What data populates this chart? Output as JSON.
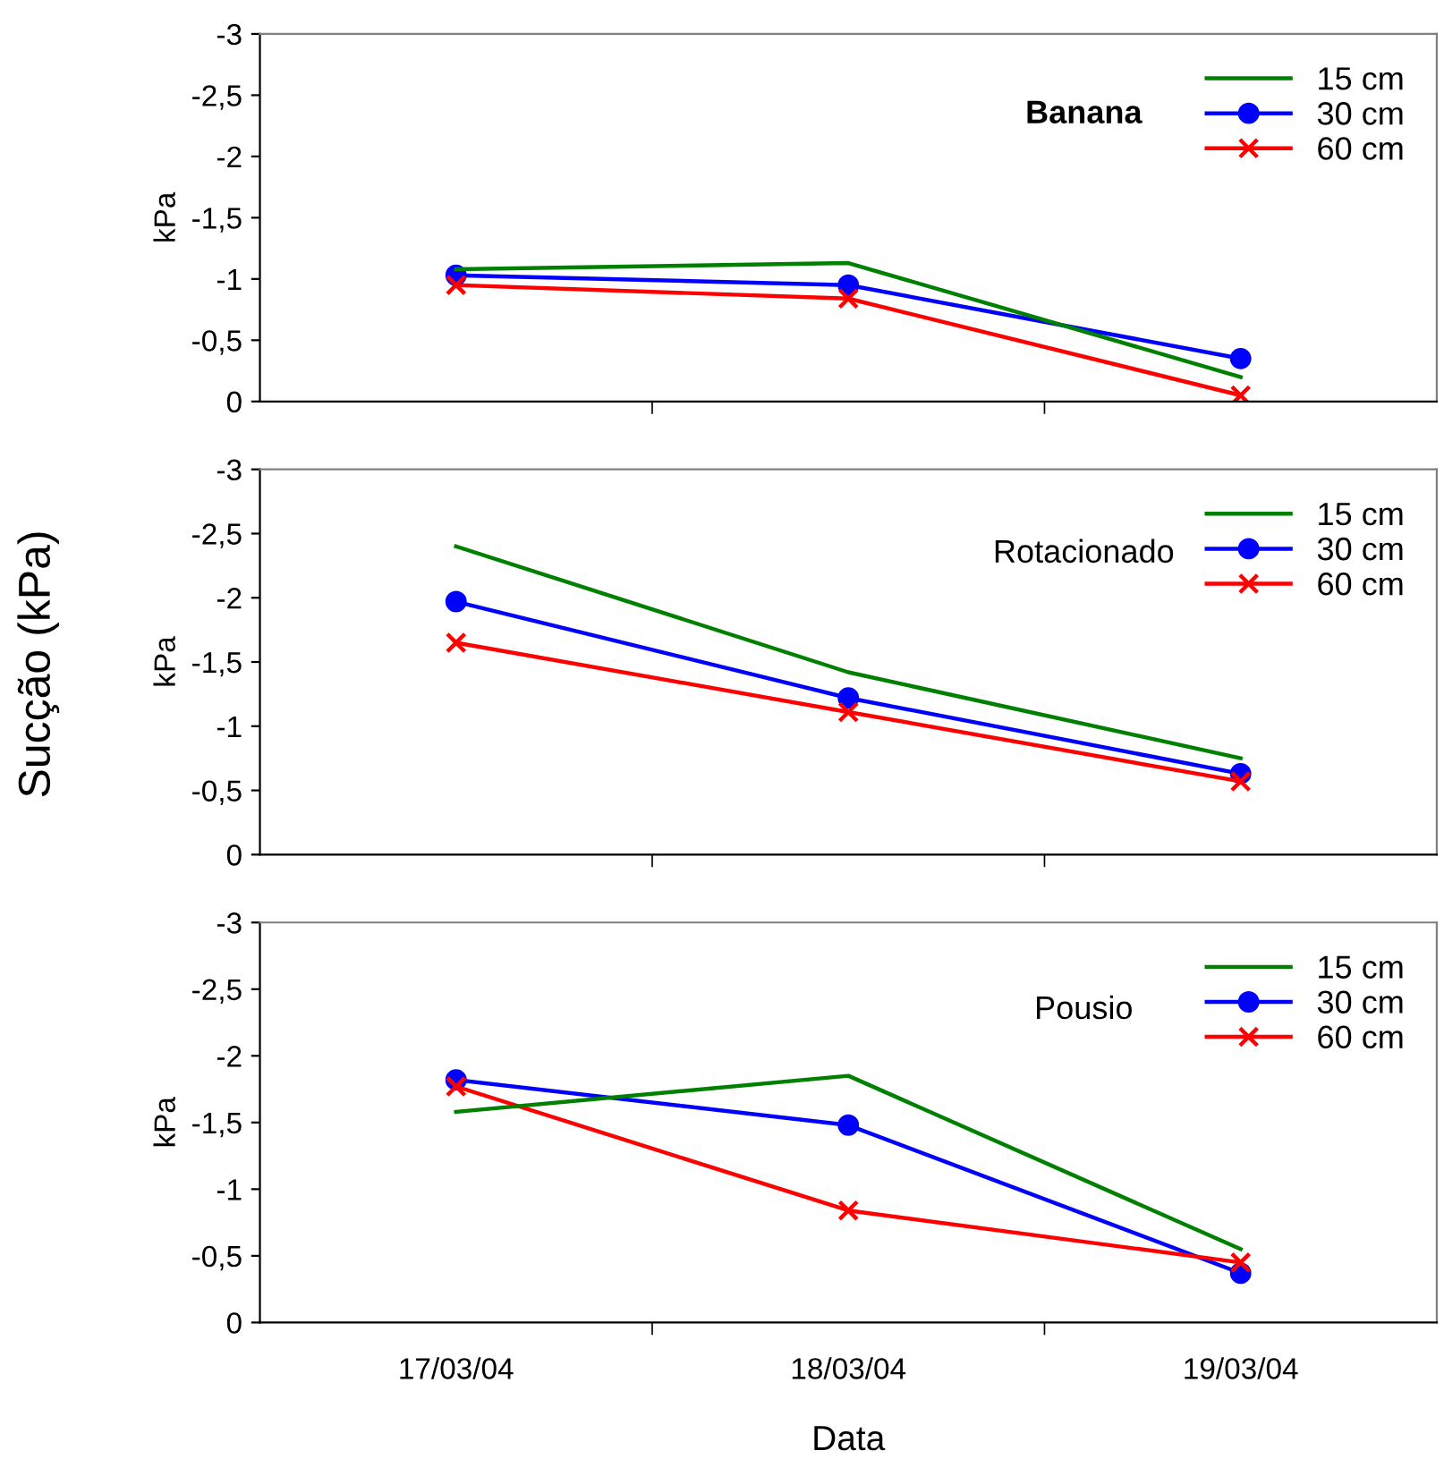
{
  "chart_data": [
    {
      "type": "line",
      "title": "Banana",
      "ylabel": "kPa",
      "categories": [
        null,
        null,
        null
      ],
      "series": [
        {
          "name": "15 cm",
          "color": "#008000",
          "marker": "none",
          "values": [
            -1.08,
            -1.13,
            -0.2
          ]
        },
        {
          "name": "30 cm",
          "color": "#0000ff",
          "marker": "circle",
          "values": [
            -1.03,
            -0.95,
            -0.35
          ]
        },
        {
          "name": "60 cm",
          "color": "#ff0000",
          "marker": "cross",
          "values": [
            -0.95,
            -0.84,
            -0.05
          ]
        }
      ],
      "ylim": [
        0,
        -3
      ],
      "yticks": [
        0,
        {
          "value": -0.5,
          "label": "-0,5"
        },
        -1,
        {
          "value": -1.5,
          "label": "-1,5"
        },
        -2,
        {
          "value": -2.5,
          "label": "-2,5"
        },
        -3
      ],
      "grid": false,
      "legend": "top right",
      "line_style": "solid",
      "tick_labels": "y"
    },
    {
      "type": "line",
      "title": "Rotacionado",
      "ylabel": "kPa",
      "categories": [
        null,
        null,
        null
      ],
      "annotations": [
        "Sucção (kPa)"
      ],
      "series": [
        {
          "name": "15 cm",
          "color": "#008000",
          "marker": "none",
          "values": [
            -2.4,
            -1.42,
            -0.75
          ]
        },
        {
          "name": "30 cm",
          "color": "#0000ff",
          "marker": "circle",
          "values": [
            -1.97,
            -1.22,
            -0.63
          ]
        },
        {
          "name": "60 cm",
          "color": "#ff0000",
          "marker": "cross",
          "values": [
            -1.65,
            -1.11,
            -0.57
          ]
        }
      ],
      "ylim": [
        0,
        -3
      ],
      "yticks": [
        0,
        {
          "value": -0.5,
          "label": "-0,5"
        },
        -1,
        {
          "value": -1.5,
          "label": "-1,5"
        },
        -2,
        {
          "value": -2.5,
          "label": "-2,5"
        },
        -3
      ],
      "grid": false,
      "legend": "top right",
      "line_style": "solid",
      "tick_labels": "y"
    },
    {
      "type": "line",
      "title": "Pousio",
      "ylabel": "kPa",
      "xlabel": "Data",
      "categories": [
        "17/03/04",
        "18/03/04",
        "19/03/04"
      ],
      "series": [
        {
          "name": "15 cm",
          "color": "#008000",
          "marker": "none",
          "values": [
            -1.58,
            -1.85,
            -0.55
          ]
        },
        {
          "name": "30 cm",
          "color": "#0000ff",
          "marker": "circle",
          "values": [
            -1.82,
            -1.48,
            -0.37
          ]
        },
        {
          "name": "60 cm",
          "color": "#ff0000",
          "marker": "cross",
          "values": [
            -1.77,
            -0.84,
            -0.45
          ]
        }
      ],
      "ylim": [
        0,
        -3
      ],
      "yticks": [
        0,
        {
          "value": -0.5,
          "label": "-0,5"
        },
        -1,
        {
          "value": -1.5,
          "label": "-1,5"
        },
        -2,
        {
          "value": -2.5,
          "label": "-2,5"
        },
        -3
      ],
      "grid": false,
      "legend": "top right",
      "line_style": "solid"
    }
  ]
}
